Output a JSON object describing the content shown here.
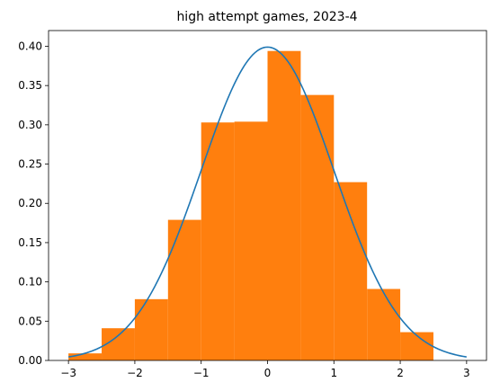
{
  "chart_data": {
    "type": "bar",
    "title": "high attempt games, 2023-4",
    "xlabel": "",
    "ylabel": "",
    "xlim": [
      -3.3,
      3.3
    ],
    "ylim": [
      0,
      0.42
    ],
    "grid": false,
    "xticks": [
      -3,
      -2,
      -1,
      0,
      1,
      2,
      3
    ],
    "xtick_labels": [
      "−3",
      "−2",
      "−1",
      "0",
      "1",
      "2",
      "3"
    ],
    "yticks": [
      0,
      0.05,
      0.1,
      0.15,
      0.2,
      0.25,
      0.3,
      0.35,
      0.4
    ],
    "ytick_labels": [
      "0.00",
      "0.05",
      "0.10",
      "0.15",
      "0.20",
      "0.25",
      "0.30",
      "0.35",
      "0.40"
    ],
    "histogram": {
      "color": "#ff7f0e",
      "bins": [
        {
          "x0": -3.0,
          "x1": -2.5,
          "density": 0.009
        },
        {
          "x0": -2.5,
          "x1": -2.0,
          "density": 0.041
        },
        {
          "x0": -2.0,
          "x1": -1.5,
          "density": 0.078
        },
        {
          "x0": -1.5,
          "x1": -1.0,
          "density": 0.179
        },
        {
          "x0": -1.0,
          "x1": -0.5,
          "density": 0.303
        },
        {
          "x0": -0.5,
          "x1": 0.0,
          "density": 0.304
        },
        {
          "x0": 0.0,
          "x1": 0.5,
          "density": 0.394
        },
        {
          "x0": 0.5,
          "x1": 1.0,
          "density": 0.338
        },
        {
          "x0": 1.0,
          "x1": 1.5,
          "density": 0.227
        },
        {
          "x0": 1.5,
          "x1": 2.0,
          "density": 0.091
        },
        {
          "x0": 2.0,
          "x1": 2.5,
          "density": 0.036
        }
      ]
    },
    "curve": {
      "color": "#1f77b4",
      "function": "standard-normal-pdf",
      "x_range": [
        -3,
        3
      ]
    }
  }
}
